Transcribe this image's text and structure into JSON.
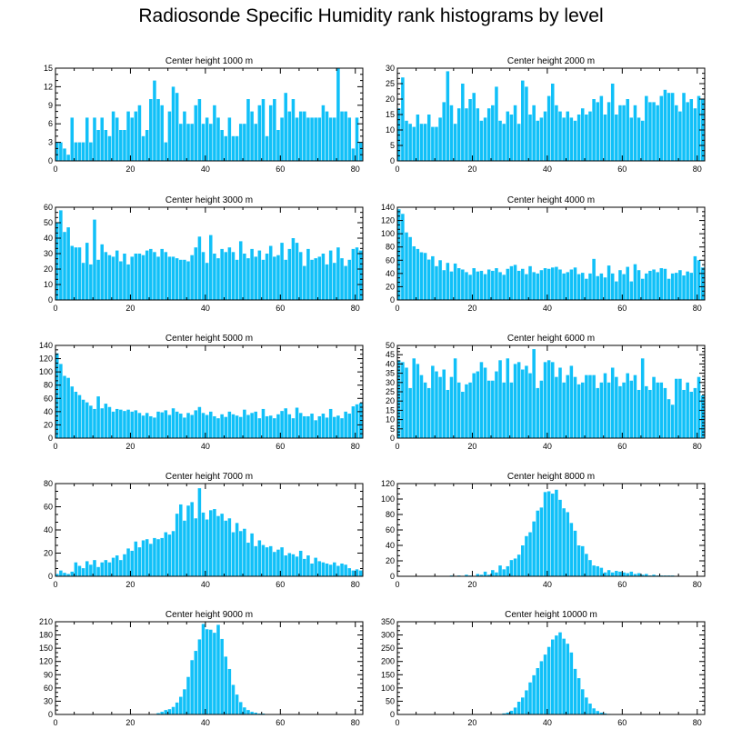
{
  "title": "Radiosonde Specific Humidity rank histograms by level",
  "style": {
    "bar_color": "#10c0f8",
    "frame_color": "#000000"
  },
  "chart_data": [
    {
      "type": "bar",
      "title": "Center height 1000 m",
      "xlim": [
        0,
        82
      ],
      "ylim": [
        0,
        15
      ],
      "xticks": [
        0,
        20,
        40,
        60,
        80
      ],
      "yticks": [
        0,
        3,
        6,
        9,
        12,
        15
      ],
      "values": [
        3,
        3,
        2,
        1,
        7,
        3,
        3,
        3,
        7,
        3,
        7,
        5,
        7,
        5,
        4,
        8,
        7,
        5,
        5,
        8,
        7,
        8,
        9,
        4,
        5,
        10,
        13,
        10,
        9,
        3,
        8,
        12,
        11,
        6,
        8,
        6,
        6,
        9,
        10,
        6,
        7,
        6,
        9,
        7,
        5,
        4,
        7,
        4,
        4,
        6,
        6,
        10,
        8,
        6,
        9,
        10,
        4,
        9,
        10,
        5,
        7,
        11,
        8,
        10,
        7,
        8,
        8,
        7,
        7,
        7,
        7,
        9,
        8,
        7,
        7,
        15,
        8,
        8,
        7,
        2,
        7,
        3
      ]
    },
    {
      "type": "bar",
      "title": "Center height 2000 m",
      "xlim": [
        0,
        82
      ],
      "ylim": [
        0,
        30
      ],
      "xticks": [
        0,
        20,
        40,
        60,
        80
      ],
      "yticks": [
        0,
        5,
        10,
        15,
        20,
        25,
        30
      ],
      "values": [
        17,
        27,
        13,
        12,
        11,
        15,
        12,
        12,
        15,
        11,
        11,
        14,
        19,
        29,
        18,
        12,
        17,
        25,
        17,
        20,
        22,
        17,
        13,
        14,
        17,
        18,
        24,
        13,
        12,
        16,
        15,
        18,
        12,
        26,
        24,
        15,
        18,
        13,
        14,
        16,
        21,
        25,
        18,
        16,
        14,
        16,
        14,
        13,
        15,
        17,
        15,
        16,
        20,
        19,
        21,
        15,
        19,
        25,
        15,
        18,
        18,
        20,
        14,
        18,
        14,
        13,
        21,
        19,
        19,
        18,
        21,
        23,
        22,
        22,
        18,
        16,
        22,
        19,
        20,
        17,
        21,
        20
      ]
    },
    {
      "type": "bar",
      "title": "Center height 3000 m",
      "xlim": [
        0,
        82
      ],
      "ylim": [
        0,
        60
      ],
      "xticks": [
        0,
        20,
        40,
        60,
        80
      ],
      "yticks": [
        0,
        10,
        20,
        30,
        40,
        50,
        60
      ],
      "values": [
        50,
        58,
        44,
        47,
        35,
        34,
        34,
        24,
        37,
        23,
        52,
        26,
        36,
        31,
        29,
        28,
        32,
        25,
        30,
        23,
        28,
        30,
        30,
        29,
        32,
        33,
        31,
        28,
        33,
        31,
        28,
        28,
        27,
        26,
        26,
        25,
        29,
        34,
        41,
        31,
        24,
        42,
        30,
        27,
        33,
        31,
        34,
        31,
        26,
        38,
        30,
        27,
        33,
        28,
        32,
        26,
        30,
        35,
        28,
        29,
        37,
        26,
        33,
        40,
        37,
        31,
        22,
        33,
        26,
        27,
        28,
        30,
        23,
        32,
        24,
        34,
        27,
        22,
        26,
        33,
        34,
        32
      ]
    },
    {
      "type": "bar",
      "title": "Center height 4000 m",
      "xlim": [
        0,
        82
      ],
      "ylim": [
        0,
        140
      ],
      "xticks": [
        0,
        20,
        40,
        60,
        80
      ],
      "yticks": [
        0,
        20,
        40,
        60,
        80,
        100,
        120,
        140
      ],
      "values": [
        137,
        130,
        102,
        95,
        81,
        77,
        72,
        71,
        61,
        66,
        51,
        60,
        45,
        56,
        43,
        55,
        48,
        46,
        42,
        38,
        48,
        43,
        44,
        39,
        46,
        44,
        48,
        42,
        38,
        47,
        51,
        53,
        44,
        47,
        39,
        51,
        42,
        40,
        45,
        48,
        47,
        49,
        50,
        46,
        40,
        42,
        46,
        49,
        39,
        41,
        32,
        40,
        62,
        36,
        40,
        34,
        52,
        40,
        28,
        45,
        39,
        50,
        28,
        54,
        45,
        32,
        40,
        44,
        46,
        42,
        48,
        47,
        32,
        40,
        41,
        45,
        37,
        43,
        41,
        66,
        60,
        49
      ]
    },
    {
      "type": "bar",
      "title": "Center height 5000 m",
      "xlim": [
        0,
        82
      ],
      "ylim": [
        0,
        140
      ],
      "xticks": [
        0,
        20,
        40,
        60,
        80
      ],
      "yticks": [
        0,
        20,
        40,
        60,
        80,
        100,
        120,
        140
      ],
      "values": [
        128,
        112,
        94,
        91,
        78,
        70,
        65,
        58,
        54,
        49,
        44,
        63,
        45,
        52,
        47,
        40,
        44,
        43,
        41,
        43,
        40,
        42,
        38,
        34,
        38,
        33,
        31,
        40,
        39,
        42,
        35,
        45,
        40,
        37,
        31,
        38,
        35,
        42,
        47,
        38,
        35,
        40,
        33,
        30,
        36,
        32,
        40,
        36,
        34,
        32,
        43,
        35,
        38,
        40,
        30,
        44,
        33,
        34,
        30,
        36,
        41,
        45,
        36,
        30,
        46,
        38,
        33,
        33,
        37,
        27,
        33,
        37,
        31,
        44,
        32,
        34,
        30,
        40,
        37,
        48,
        51,
        53
      ]
    },
    {
      "type": "bar",
      "title": "Center height 6000 m",
      "xlim": [
        0,
        82
      ],
      "ylim": [
        0,
        50
      ],
      "xticks": [
        0,
        20,
        40,
        60,
        80
      ],
      "yticks": [
        0,
        5,
        10,
        15,
        20,
        25,
        30,
        35,
        40,
        45,
        50
      ],
      "values": [
        42,
        41,
        38,
        27,
        43,
        40,
        34,
        30,
        27,
        39,
        36,
        33,
        37,
        26,
        33,
        43,
        30,
        25,
        29,
        30,
        35,
        36,
        41,
        38,
        31,
        31,
        36,
        42,
        30,
        43,
        30,
        40,
        41,
        37,
        39,
        35,
        48,
        27,
        31,
        41,
        42,
        41,
        33,
        38,
        30,
        34,
        39,
        33,
        29,
        30,
        34,
        34,
        34,
        27,
        30,
        35,
        30,
        38,
        33,
        28,
        30,
        35,
        31,
        34,
        26,
        43,
        28,
        26,
        33,
        30,
        30,
        27,
        21,
        18,
        32,
        32,
        26,
        30,
        25,
        27,
        33,
        23
      ]
    },
    {
      "type": "bar",
      "title": "Center height 7000 m",
      "xlim": [
        0,
        82
      ],
      "ylim": [
        0,
        80
      ],
      "xticks": [
        0,
        20,
        40,
        60,
        80
      ],
      "yticks": [
        0,
        20,
        40,
        60,
        80
      ],
      "values": [
        2,
        5,
        3,
        2,
        4,
        12,
        9,
        7,
        13,
        10,
        14,
        8,
        12,
        14,
        12,
        16,
        18,
        14,
        19,
        24,
        22,
        30,
        25,
        31,
        32,
        28,
        33,
        32,
        33,
        38,
        36,
        39,
        54,
        62,
        48,
        61,
        64,
        50,
        76,
        55,
        49,
        57,
        58,
        52,
        54,
        48,
        50,
        38,
        46,
        39,
        41,
        29,
        37,
        26,
        31,
        27,
        25,
        26,
        21,
        23,
        25,
        18,
        20,
        19,
        17,
        22,
        15,
        18,
        11,
        16,
        13,
        12,
        11,
        10,
        12,
        9,
        11,
        10,
        7,
        5,
        6,
        5
      ]
    },
    {
      "type": "bar",
      "title": "Center height 8000 m",
      "xlim": [
        0,
        82
      ],
      "ylim": [
        0,
        120
      ],
      "xticks": [
        0,
        20,
        40,
        60,
        80
      ],
      "yticks": [
        0,
        20,
        40,
        60,
        80,
        100,
        120
      ],
      "values": [
        0,
        0,
        0,
        0,
        0,
        0,
        0,
        0,
        0,
        0,
        0,
        0,
        0,
        0,
        1,
        0,
        1,
        0,
        2,
        1,
        0,
        3,
        2,
        6,
        2,
        8,
        5,
        14,
        9,
        13,
        21,
        23,
        28,
        40,
        52,
        57,
        71,
        85,
        89,
        109,
        110,
        107,
        112,
        99,
        88,
        83,
        69,
        59,
        40,
        39,
        29,
        21,
        14,
        13,
        11,
        5,
        8,
        5,
        7,
        6,
        5,
        4,
        6,
        3,
        4,
        2,
        3,
        1,
        2,
        1,
        1,
        1,
        1,
        1,
        0,
        0,
        0,
        0,
        0,
        0,
        0,
        0
      ]
    },
    {
      "type": "bar",
      "title": "Center height 9000 m",
      "xlim": [
        0,
        82
      ],
      "ylim": [
        0,
        210
      ],
      "xticks": [
        0,
        20,
        40,
        60,
        80
      ],
      "yticks": [
        0,
        30,
        60,
        90,
        120,
        150,
        180,
        210
      ],
      "values": [
        0,
        0,
        0,
        0,
        0,
        0,
        0,
        0,
        0,
        0,
        0,
        0,
        0,
        0,
        0,
        0,
        0,
        0,
        0,
        0,
        0,
        0,
        0,
        0,
        0,
        0,
        1,
        3,
        6,
        10,
        12,
        17,
        27,
        40,
        57,
        85,
        123,
        144,
        170,
        205,
        193,
        192,
        185,
        203,
        171,
        131,
        103,
        67,
        45,
        28,
        16,
        10,
        6,
        4,
        2,
        2,
        1,
        1,
        1,
        0,
        1,
        0,
        1,
        0,
        0,
        0,
        0,
        0,
        0,
        0,
        0,
        0,
        0,
        0,
        0,
        0,
        0,
        0,
        0,
        0,
        0,
        0
      ]
    },
    {
      "type": "bar",
      "title": "Center height 10000 m",
      "xlim": [
        0,
        82
      ],
      "ylim": [
        0,
        350
      ],
      "xticks": [
        0,
        20,
        40,
        60,
        80
      ],
      "yticks": [
        0,
        50,
        100,
        150,
        200,
        250,
        300,
        350
      ],
      "values": [
        0,
        0,
        0,
        0,
        0,
        0,
        0,
        0,
        0,
        0,
        0,
        0,
        0,
        0,
        0,
        0,
        0,
        0,
        0,
        0,
        0,
        0,
        0,
        0,
        0,
        0,
        1,
        1,
        4,
        7,
        14,
        26,
        48,
        64,
        91,
        121,
        148,
        175,
        201,
        226,
        255,
        283,
        298,
        310,
        286,
        267,
        234,
        172,
        137,
        95,
        64,
        41,
        23,
        13,
        7,
        4,
        2,
        1,
        1,
        1,
        0,
        0,
        0,
        0,
        0,
        0,
        0,
        0,
        0,
        0,
        0,
        0,
        0,
        0,
        0,
        0,
        0,
        0,
        0,
        0,
        0,
        1
      ]
    }
  ]
}
